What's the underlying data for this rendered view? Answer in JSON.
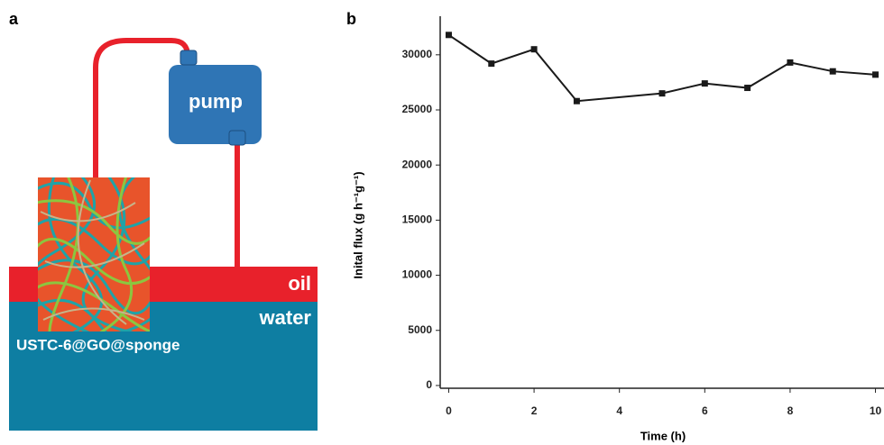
{
  "panel_a": {
    "label": "a",
    "pump": "pump",
    "oil": "oil",
    "water": "water",
    "sponge": "USTC-6@GO@sponge"
  },
  "chart_data": {
    "type": "line",
    "label": "b",
    "x_label": "Time (h)",
    "y_label": "Inital flux (g h⁻¹g⁻¹)",
    "x": [
      0,
      1,
      2,
      3,
      5,
      6,
      7,
      8,
      9,
      10
    ],
    "series": [
      {
        "color": "#1a1a1a",
        "values": [
          31800,
          29200,
          30500,
          25800,
          26500,
          27400,
          27000,
          29300,
          28500,
          28200
        ]
      }
    ],
    "xlim": [
      -0.2,
      10.2
    ],
    "xticks": [
      0,
      2,
      4,
      6,
      8,
      10
    ],
    "ylim": [
      -250,
      33500
    ],
    "yticks": [
      0,
      5000,
      10000,
      15000,
      20000,
      25000,
      30000
    ]
  }
}
